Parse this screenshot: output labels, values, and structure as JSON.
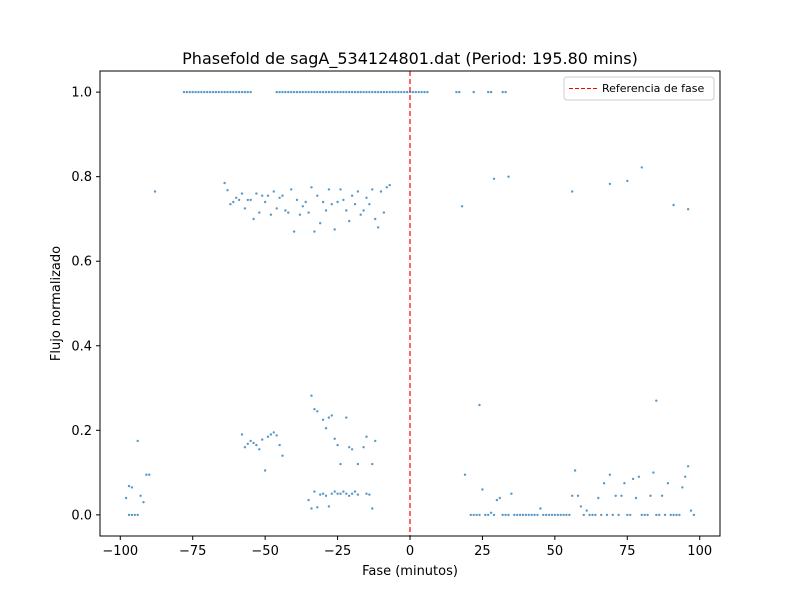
{
  "chart_data": {
    "type": "scatter",
    "title": "Phasefold de sagA_534124801.dat (Period: 195.80 mins)",
    "xlabel": "Fase (minutos)",
    "ylabel": "Flujo normalizado",
    "xlim": [
      -107,
      107
    ],
    "ylim": [
      -0.05,
      1.05
    ],
    "xticks": [
      -100,
      -75,
      -50,
      -25,
      0,
      25,
      50,
      75,
      100
    ],
    "yticks": [
      0.0,
      0.2,
      0.4,
      0.6,
      0.8,
      1.0
    ],
    "grid": false,
    "legend": {
      "position": "top-right",
      "entries": [
        {
          "label": "Referencia de fase",
          "style": "dashed-line",
          "color": "#ff0000"
        }
      ]
    },
    "reference_line": {
      "x": 0,
      "color": "#ff0000",
      "style": "dashed"
    },
    "colors": {
      "points": "#1f77b4"
    },
    "series": [
      {
        "points": [
          [
            -78,
            1.0
          ],
          [
            -77,
            1.0
          ],
          [
            -76,
            1.0
          ],
          [
            -75,
            1.0
          ],
          [
            -74,
            1.0
          ],
          [
            -73,
            1.0
          ],
          [
            -72,
            1.0
          ],
          [
            -71,
            1.0
          ],
          [
            -70,
            1.0
          ],
          [
            -69,
            1.0
          ],
          [
            -68,
            1.0
          ],
          [
            -67,
            1.0
          ],
          [
            -66,
            1.0
          ],
          [
            -65,
            1.0
          ],
          [
            -64,
            1.0
          ],
          [
            -63,
            1.0
          ],
          [
            -62,
            1.0
          ],
          [
            -61,
            1.0
          ],
          [
            -60,
            1.0
          ],
          [
            -59,
            1.0
          ],
          [
            -58,
            1.0
          ],
          [
            -57,
            1.0
          ],
          [
            -56,
            1.0
          ],
          [
            -55,
            1.0
          ],
          [
            -46,
            1.0
          ],
          [
            -45,
            1.0
          ],
          [
            -44,
            1.0
          ],
          [
            -43,
            1.0
          ],
          [
            -42,
            1.0
          ],
          [
            -41,
            1.0
          ],
          [
            -40,
            1.0
          ],
          [
            -39,
            1.0
          ],
          [
            -38,
            1.0
          ],
          [
            -37,
            1.0
          ],
          [
            -36,
            1.0
          ],
          [
            -35,
            1.0
          ],
          [
            -34,
            1.0
          ],
          [
            -33,
            1.0
          ],
          [
            -32,
            1.0
          ],
          [
            -31,
            1.0
          ],
          [
            -30,
            1.0
          ],
          [
            -29,
            1.0
          ],
          [
            -28,
            1.0
          ],
          [
            -27,
            1.0
          ],
          [
            -26,
            1.0
          ],
          [
            -25,
            1.0
          ],
          [
            -24,
            1.0
          ],
          [
            -23,
            1.0
          ],
          [
            -22,
            1.0
          ],
          [
            -21,
            1.0
          ],
          [
            -20,
            1.0
          ],
          [
            -19,
            1.0
          ],
          [
            -18,
            1.0
          ],
          [
            -17,
            1.0
          ],
          [
            -16,
            1.0
          ],
          [
            -15,
            1.0
          ],
          [
            -14,
            1.0
          ],
          [
            -13,
            1.0
          ],
          [
            -12,
            1.0
          ],
          [
            -11,
            1.0
          ],
          [
            -10,
            1.0
          ],
          [
            -9,
            1.0
          ],
          [
            -8,
            1.0
          ],
          [
            -7,
            1.0
          ],
          [
            -6,
            1.0
          ],
          [
            -5,
            1.0
          ],
          [
            -4,
            1.0
          ],
          [
            -3,
            1.0
          ],
          [
            -2,
            1.0
          ],
          [
            -1,
            1.0
          ],
          [
            0,
            1.0
          ],
          [
            1,
            1.0
          ],
          [
            2,
            1.0
          ],
          [
            3,
            1.0
          ],
          [
            4,
            1.0
          ],
          [
            5,
            1.0
          ],
          [
            6,
            1.0
          ],
          [
            16,
            1.0
          ],
          [
            17,
            1.0
          ],
          [
            22,
            1.0
          ],
          [
            27,
            1.0
          ],
          [
            28,
            1.0
          ],
          [
            32,
            1.0
          ],
          [
            33,
            1.0
          ],
          [
            -88,
            0.765
          ],
          [
            -64,
            0.785
          ],
          [
            -63,
            0.768
          ],
          [
            -62,
            0.735
          ],
          [
            -61,
            0.74
          ],
          [
            -60,
            0.75
          ],
          [
            -59,
            0.745
          ],
          [
            -58,
            0.76
          ],
          [
            -57,
            0.725
          ],
          [
            -56,
            0.745
          ],
          [
            -55,
            0.745
          ],
          [
            -54,
            0.7
          ],
          [
            -53,
            0.76
          ],
          [
            -52,
            0.715
          ],
          [
            -51,
            0.755
          ],
          [
            -50,
            0.74
          ],
          [
            -49,
            0.755
          ],
          [
            -48,
            0.71
          ],
          [
            -47,
            0.765
          ],
          [
            -46,
            0.725
          ],
          [
            -45,
            0.75
          ],
          [
            -44,
            0.755
          ],
          [
            -43,
            0.72
          ],
          [
            -42,
            0.715
          ],
          [
            -41,
            0.77
          ],
          [
            -40,
            0.67
          ],
          [
            -39,
            0.745
          ],
          [
            -38,
            0.71
          ],
          [
            -37,
            0.73
          ],
          [
            -36,
            0.74
          ],
          [
            -35,
            0.715
          ],
          [
            -34,
            0.775
          ],
          [
            -33,
            0.67
          ],
          [
            -32,
            0.755
          ],
          [
            -31,
            0.69
          ],
          [
            -30,
            0.74
          ],
          [
            -29,
            0.72
          ],
          [
            -28,
            0.77
          ],
          [
            -27,
            0.735
          ],
          [
            -26,
            0.675
          ],
          [
            -25,
            0.74
          ],
          [
            -24,
            0.77
          ],
          [
            -23,
            0.745
          ],
          [
            -22,
            0.72
          ],
          [
            -21,
            0.695
          ],
          [
            -20,
            0.755
          ],
          [
            -19,
            0.735
          ],
          [
            -18,
            0.765
          ],
          [
            -17,
            0.71
          ],
          [
            -16,
            0.72
          ],
          [
            -15,
            0.75
          ],
          [
            -14,
            0.735
          ],
          [
            -13,
            0.77
          ],
          [
            -12,
            0.7
          ],
          [
            -11,
            0.68
          ],
          [
            -10,
            0.765
          ],
          [
            -9,
            0.715
          ],
          [
            -8,
            0.775
          ],
          [
            -7,
            0.78
          ],
          [
            18,
            0.73
          ],
          [
            29,
            0.795
          ],
          [
            34,
            0.8
          ],
          [
            56,
            0.765
          ],
          [
            69,
            0.783
          ],
          [
            75,
            0.79
          ],
          [
            80,
            0.822
          ],
          [
            91,
            0.733
          ],
          [
            96,
            0.723
          ],
          [
            -58,
            0.19
          ],
          [
            -57,
            0.16
          ],
          [
            -56,
            0.168
          ],
          [
            -55,
            0.175
          ],
          [
            -54,
            0.17
          ],
          [
            -53,
            0.165
          ],
          [
            -52,
            0.155
          ],
          [
            -51,
            0.178
          ],
          [
            -50,
            0.105
          ],
          [
            -49,
            0.185
          ],
          [
            -48,
            0.19
          ],
          [
            -47,
            0.195
          ],
          [
            -46,
            0.188
          ],
          [
            -45,
            0.165
          ],
          [
            -44,
            0.14
          ],
          [
            -34,
            0.282
          ],
          [
            -33,
            0.25
          ],
          [
            -32,
            0.245
          ],
          [
            -30,
            0.225
          ],
          [
            -29,
            0.205
          ],
          [
            -28,
            0.23
          ],
          [
            -27,
            0.235
          ],
          [
            -26,
            0.18
          ],
          [
            -25,
            0.165
          ],
          [
            -24,
            0.12
          ],
          [
            -22,
            0.23
          ],
          [
            -21,
            0.16
          ],
          [
            -20,
            0.155
          ],
          [
            -18,
            0.12
          ],
          [
            -16,
            0.16
          ],
          [
            -15,
            0.185
          ],
          [
            -13,
            0.12
          ],
          [
            -12,
            0.175
          ],
          [
            -94,
            0.175
          ],
          [
            -91,
            0.095
          ],
          [
            -90,
            0.095
          ],
          [
            24,
            0.26
          ],
          [
            85,
            0.27
          ],
          [
            -98,
            0.04
          ],
          [
            -97,
            0.068
          ],
          [
            -96,
            0.065
          ],
          [
            -95,
            0.0
          ],
          [
            -94,
            0.0
          ],
          [
            -93,
            0.045
          ],
          [
            -92,
            0.03
          ],
          [
            -97,
            0.0
          ],
          [
            -96,
            0.0
          ],
          [
            -35,
            0.035
          ],
          [
            -34,
            0.015
          ],
          [
            -33,
            0.055
          ],
          [
            -32,
            0.018
          ],
          [
            -31,
            0.048
          ],
          [
            -30,
            0.05
          ],
          [
            -29,
            0.045
          ],
          [
            -28,
            0.02
          ],
          [
            -27,
            0.05
          ],
          [
            -26,
            0.055
          ],
          [
            -25,
            0.05
          ],
          [
            -24,
            0.05
          ],
          [
            -23,
            0.055
          ],
          [
            -22,
            0.05
          ],
          [
            -21,
            0.045
          ],
          [
            -20,
            0.05
          ],
          [
            -19,
            0.055
          ],
          [
            -18,
            0.048
          ],
          [
            -15,
            0.05
          ],
          [
            -14,
            0.048
          ],
          [
            -13,
            0.015
          ],
          [
            19,
            0.095
          ],
          [
            21,
            0.0
          ],
          [
            22,
            0.0
          ],
          [
            23,
            0.0
          ],
          [
            24,
            0.0
          ],
          [
            25,
            0.06
          ],
          [
            26,
            0.0
          ],
          [
            27,
            0.0
          ],
          [
            28,
            0.005
          ],
          [
            29,
            0.0
          ],
          [
            30,
            0.035
          ],
          [
            31,
            0.04
          ],
          [
            32,
            0.0
          ],
          [
            33,
            0.0
          ],
          [
            34,
            0.0
          ],
          [
            35,
            0.05
          ],
          [
            36,
            0.0
          ],
          [
            37,
            0.0
          ],
          [
            38,
            0.0
          ],
          [
            39,
            0.0
          ],
          [
            40,
            0.0
          ],
          [
            41,
            0.0
          ],
          [
            42,
            0.0
          ],
          [
            43,
            0.0
          ],
          [
            44,
            0.0
          ],
          [
            45,
            0.015
          ],
          [
            46,
            0.0
          ],
          [
            47,
            0.0
          ],
          [
            48,
            0.0
          ],
          [
            49,
            0.0
          ],
          [
            50,
            0.0
          ],
          [
            51,
            0.0
          ],
          [
            52,
            0.0
          ],
          [
            53,
            0.0
          ],
          [
            54,
            0.0
          ],
          [
            55,
            0.0
          ],
          [
            56,
            0.045
          ],
          [
            57,
            0.105
          ],
          [
            58,
            0.045
          ],
          [
            59,
            0.02
          ],
          [
            60,
            0.0
          ],
          [
            61,
            0.01
          ],
          [
            62,
            0.0
          ],
          [
            63,
            0.0
          ],
          [
            64,
            0.0
          ],
          [
            65,
            0.04
          ],
          [
            66,
            0.0
          ],
          [
            67,
            0.075
          ],
          [
            68,
            0.0
          ],
          [
            69,
            0.095
          ],
          [
            70,
            0.0
          ],
          [
            71,
            0.045
          ],
          [
            72,
            0.0
          ],
          [
            73,
            0.045
          ],
          [
            74,
            0.075
          ],
          [
            75,
            0.0
          ],
          [
            76,
            0.0
          ],
          [
            77,
            0.085
          ],
          [
            78,
            0.04
          ],
          [
            79,
            0.09
          ],
          [
            80,
            0.0
          ],
          [
            81,
            0.0
          ],
          [
            82,
            0.0
          ],
          [
            83,
            0.045
          ],
          [
            84,
            0.1
          ],
          [
            85,
            0.0
          ],
          [
            86,
            0.0
          ],
          [
            87,
            0.045
          ],
          [
            88,
            0.0
          ],
          [
            89,
            0.075
          ],
          [
            90,
            0.0
          ],
          [
            91,
            0.0
          ],
          [
            92,
            0.0
          ],
          [
            93,
            0.0
          ],
          [
            94,
            0.065
          ],
          [
            95,
            0.09
          ],
          [
            96,
            0.115
          ],
          [
            97,
            0.01
          ],
          [
            98,
            0.0
          ]
        ]
      }
    ]
  }
}
